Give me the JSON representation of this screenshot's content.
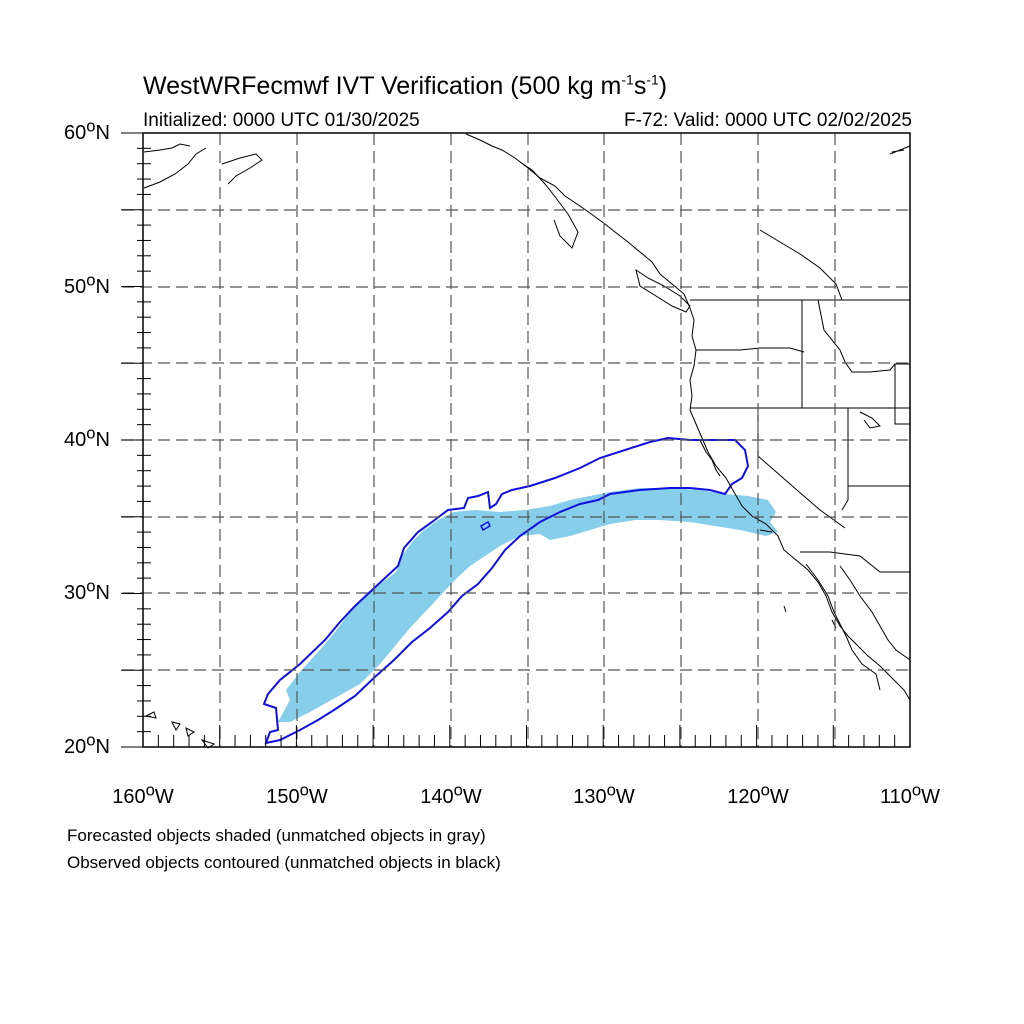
{
  "title": {
    "prefix": "WestWRFecmwf IVT Verification (500 kg m",
    "exp1": "-1",
    "mid": "s",
    "exp2": "-1",
    "suffix": ")"
  },
  "subtitle_left": "Initialized: 0000 UTC 01/30/2025",
  "subtitle_right": "F-72: Valid: 0000 UTC 02/02/2025",
  "lat_labels": [
    {
      "text": "60",
      "deg": "o",
      "hem": "N"
    },
    {
      "text": "50",
      "deg": "o",
      "hem": "N"
    },
    {
      "text": "40",
      "deg": "o",
      "hem": "N"
    },
    {
      "text": "30",
      "deg": "o",
      "hem": "N"
    },
    {
      "text": "20",
      "deg": "o",
      "hem": "N"
    }
  ],
  "lon_labels": [
    {
      "text": "160",
      "deg": "o",
      "hem": "W"
    },
    {
      "text": "150",
      "deg": "o",
      "hem": "W"
    },
    {
      "text": "140",
      "deg": "o",
      "hem": "W"
    },
    {
      "text": "130",
      "deg": "o",
      "hem": "W"
    },
    {
      "text": "120",
      "deg": "o",
      "hem": "W"
    },
    {
      "text": "110",
      "deg": "o",
      "hem": "W"
    }
  ],
  "footnote_1": "Forecasted objects shaded (unmatched objects in gray)",
  "footnote_2": "Observed objects contoured (unmatched objects in black)",
  "map_extent": {
    "lon_min": -160,
    "lon_max": -110,
    "lat_min": 20,
    "lat_max": 60
  },
  "colors": {
    "forecast_fill": "#87ceeb",
    "observed_contour": "#1010e0",
    "coastline": "#000000",
    "grid": "#555555"
  }
}
